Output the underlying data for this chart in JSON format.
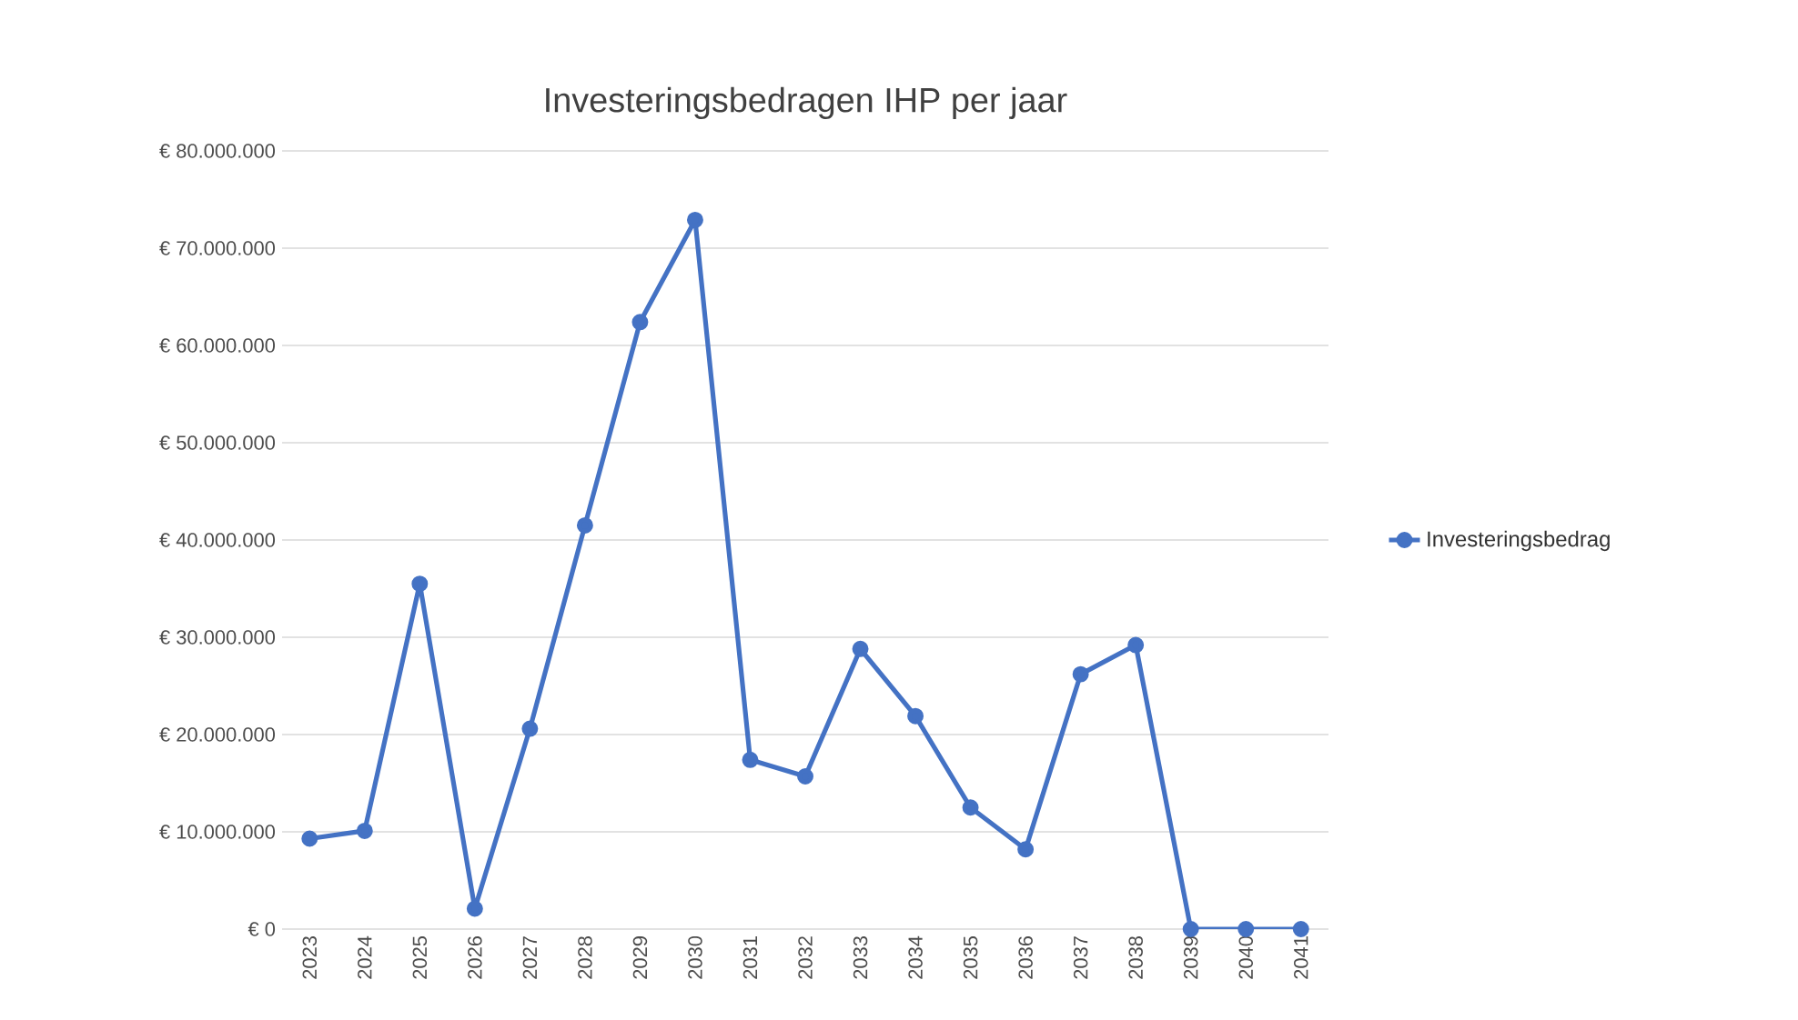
{
  "chart_data": {
    "type": "line",
    "title": "Investeringsbedragen IHP per jaar",
    "categories": [
      "2023",
      "2024",
      "2025",
      "2026",
      "2027",
      "2028",
      "2029",
      "2030",
      "2031",
      "2032",
      "2033",
      "2034",
      "2035",
      "2036",
      "2037",
      "2038",
      "2039",
      "2040",
      "2041"
    ],
    "series": [
      {
        "name": "Investeringsbedrag",
        "color": "#4472c4",
        "values": [
          9300000,
          10100000,
          35500000,
          2100000,
          20600000,
          41500000,
          62400000,
          72900000,
          17400000,
          15700000,
          28800000,
          21900000,
          12500000,
          8200000,
          26200000,
          29200000,
          0,
          0,
          0
        ]
      }
    ],
    "ylim": [
      0,
      80000000
    ],
    "yticks": [
      {
        "value": 0,
        "label": "€ 0"
      },
      {
        "value": 10000000,
        "label": "€ 10.000.000"
      },
      {
        "value": 20000000,
        "label": "€ 20.000.000"
      },
      {
        "value": 30000000,
        "label": "€ 30.000.000"
      },
      {
        "value": 40000000,
        "label": "€ 40.000.000"
      },
      {
        "value": 50000000,
        "label": "€ 50.000.000"
      },
      {
        "value": 60000000,
        "label": "€ 60.000.000"
      },
      {
        "value": 70000000,
        "label": "€ 70.000.000"
      },
      {
        "value": 80000000,
        "label": "€ 80.000.000"
      }
    ],
    "grid": "y",
    "legend": "right",
    "marker": "circle",
    "line_style": "solid"
  }
}
